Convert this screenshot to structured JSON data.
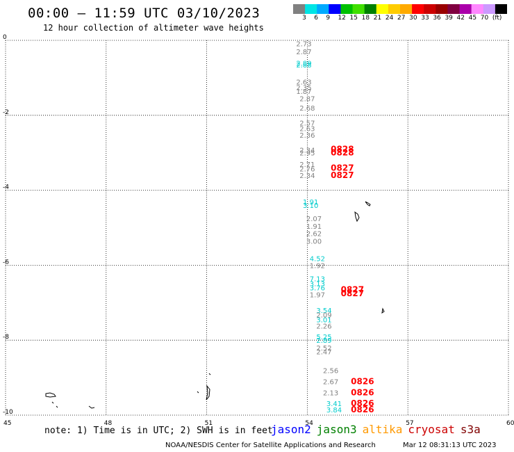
{
  "title": "00:00 – 11:59 UTC 03/10/2023",
  "subtitle": "12 hour collection of altimeter wave heights",
  "colorbar": {
    "colors": [
      "#808080",
      "#00e5e5",
      "#00aaff",
      "#0000ff",
      "#00c000",
      "#40e000",
      "#008000",
      "#ffff00",
      "#ffcc00",
      "#ffaa00",
      "#ff0000",
      "#cc0000",
      "#990000",
      "#800040",
      "#aa00aa",
      "#ff88ff",
      "#cc99ff",
      "#000000"
    ],
    "labels": [
      "3",
      "6",
      "9",
      "12",
      "15",
      "18",
      "21",
      "24",
      "27",
      "30",
      "33",
      "36",
      "39",
      "42",
      "45",
      "70",
      "(ft)"
    ]
  },
  "map": {
    "x_ticks": [
      "45",
      "48",
      "51",
      "54",
      "57",
      "60"
    ],
    "y_ticks": [
      "0",
      "-2",
      "-4",
      "-6",
      "-8",
      "-10"
    ],
    "lon_range": [
      45,
      60
    ],
    "lat_range": [
      -10,
      0
    ]
  },
  "observations": [
    {
      "lon": 54.0,
      "lat": -0.08,
      "text": "2.73",
      "color": "#808080"
    },
    {
      "lon": 54.0,
      "lat": -0.3,
      "text": "2.87",
      "color": "#808080"
    },
    {
      "lon": 54.0,
      "lat": -0.6,
      "text": "2.89",
      "color": "#00cccc"
    },
    {
      "lon": 54.0,
      "lat": -0.65,
      "text": "2.88",
      "color": "#00cccc"
    },
    {
      "lon": 54.0,
      "lat": -1.1,
      "text": "2.63",
      "color": "#808080"
    },
    {
      "lon": 54.0,
      "lat": -1.25,
      "text": "2.35",
      "color": "#808080"
    },
    {
      "lon": 54.0,
      "lat": -1.35,
      "text": "1.87",
      "color": "#808080"
    },
    {
      "lon": 54.1,
      "lat": -1.55,
      "text": "2.87",
      "color": "#808080"
    },
    {
      "lon": 54.1,
      "lat": -1.8,
      "text": "2.68",
      "color": "#808080"
    },
    {
      "lon": 54.1,
      "lat": -2.2,
      "text": "2.57",
      "color": "#808080"
    },
    {
      "lon": 54.1,
      "lat": -2.35,
      "text": "2.63",
      "color": "#808080"
    },
    {
      "lon": 54.1,
      "lat": -2.52,
      "text": "2.36",
      "color": "#808080"
    },
    {
      "lon": 54.1,
      "lat": -2.92,
      "text": "2.34",
      "color": "#808080"
    },
    {
      "lon": 54.1,
      "lat": -3.0,
      "text": "2.95",
      "color": "#808080"
    },
    {
      "lon": 54.1,
      "lat": -3.3,
      "text": "2.71",
      "color": "#808080"
    },
    {
      "lon": 54.1,
      "lat": -3.42,
      "text": "2.76",
      "color": "#808080"
    },
    {
      "lon": 54.1,
      "lat": -3.6,
      "text": "2.34",
      "color": "#808080"
    },
    {
      "lon": 54.2,
      "lat": -4.3,
      "text": "1.91",
      "color": "#00cccc"
    },
    {
      "lon": 54.2,
      "lat": -4.4,
      "text": "3.10",
      "color": "#00cccc"
    },
    {
      "lon": 54.3,
      "lat": -4.75,
      "text": "2.07",
      "color": "#808080"
    },
    {
      "lon": 54.3,
      "lat": -4.95,
      "text": "1.91",
      "color": "#808080"
    },
    {
      "lon": 54.3,
      "lat": -5.15,
      "text": "2.62",
      "color": "#808080"
    },
    {
      "lon": 54.3,
      "lat": -5.35,
      "text": "3.00",
      "color": "#808080"
    },
    {
      "lon": 54.4,
      "lat": -5.82,
      "text": "4.52",
      "color": "#00cccc"
    },
    {
      "lon": 54.4,
      "lat": -6.0,
      "text": "1.92",
      "color": "#808080"
    },
    {
      "lon": 54.4,
      "lat": -6.35,
      "text": "7.13",
      "color": "#00cccc"
    },
    {
      "lon": 54.4,
      "lat": -6.48,
      "text": "3.13",
      "color": "#00cccc"
    },
    {
      "lon": 54.4,
      "lat": -6.6,
      "text": "3.76",
      "color": "#00cccc"
    },
    {
      "lon": 54.4,
      "lat": -6.78,
      "text": "1.97",
      "color": "#808080"
    },
    {
      "lon": 54.6,
      "lat": -7.2,
      "text": "3.54",
      "color": "#00cccc"
    },
    {
      "lon": 54.6,
      "lat": -7.32,
      "text": "2.09",
      "color": "#808080"
    },
    {
      "lon": 54.6,
      "lat": -7.45,
      "text": "3.01",
      "color": "#00cccc"
    },
    {
      "lon": 54.6,
      "lat": -7.62,
      "text": "2.26",
      "color": "#808080"
    },
    {
      "lon": 54.6,
      "lat": -7.9,
      "text": "5.25",
      "color": "#00cccc"
    },
    {
      "lon": 54.6,
      "lat": -8.0,
      "text": "2.89",
      "color": "#00cccc"
    },
    {
      "lon": 54.6,
      "lat": -8.2,
      "text": "2.52",
      "color": "#808080"
    },
    {
      "lon": 54.6,
      "lat": -8.3,
      "text": "2.47",
      "color": "#808080"
    },
    {
      "lon": 54.8,
      "lat": -8.8,
      "text": "2.56",
      "color": "#808080"
    },
    {
      "lon": 54.8,
      "lat": -9.1,
      "text": "2.67",
      "color": "#808080"
    },
    {
      "lon": 54.8,
      "lat": -9.4,
      "text": "2.13",
      "color": "#808080"
    },
    {
      "lon": 54.9,
      "lat": -9.68,
      "text": "3.41",
      "color": "#00cccc"
    },
    {
      "lon": 54.9,
      "lat": -9.85,
      "text": "3.84",
      "color": "#00cccc"
    }
  ],
  "timestamps": [
    {
      "lon": 54.7,
      "lat": -2.9,
      "text": "0828"
    },
    {
      "lon": 54.7,
      "lat": -3.0,
      "text": "0828"
    },
    {
      "lon": 54.7,
      "lat": -3.4,
      "text": "0827"
    },
    {
      "lon": 54.7,
      "lat": -3.6,
      "text": "0827"
    },
    {
      "lon": 55.0,
      "lat": -6.65,
      "text": "0827"
    },
    {
      "lon": 55.0,
      "lat": -6.75,
      "text": "0827"
    },
    {
      "lon": 55.3,
      "lat": -9.1,
      "text": "0826"
    },
    {
      "lon": 55.3,
      "lat": -9.4,
      "text": "0826"
    },
    {
      "lon": 55.3,
      "lat": -9.68,
      "text": "0826"
    },
    {
      "lon": 55.3,
      "lat": -9.85,
      "text": "0826"
    }
  ],
  "note": "note: 1) Time is in UTC; 2) SWH is in feet",
  "legend": [
    {
      "label": "jason2",
      "color": "#0000ff"
    },
    {
      "label": "jason3",
      "color": "#008000"
    },
    {
      "label": "altika",
      "color": "#ff9900"
    },
    {
      "label": "cryosat",
      "color": "#cc0000"
    },
    {
      "label": "s3a",
      "color": "#800000"
    }
  ],
  "credit": "NOAA/NESDIS Center for Satellite Applications and Research",
  "generated": "Mar 12 08:31:13 UTC 2023"
}
